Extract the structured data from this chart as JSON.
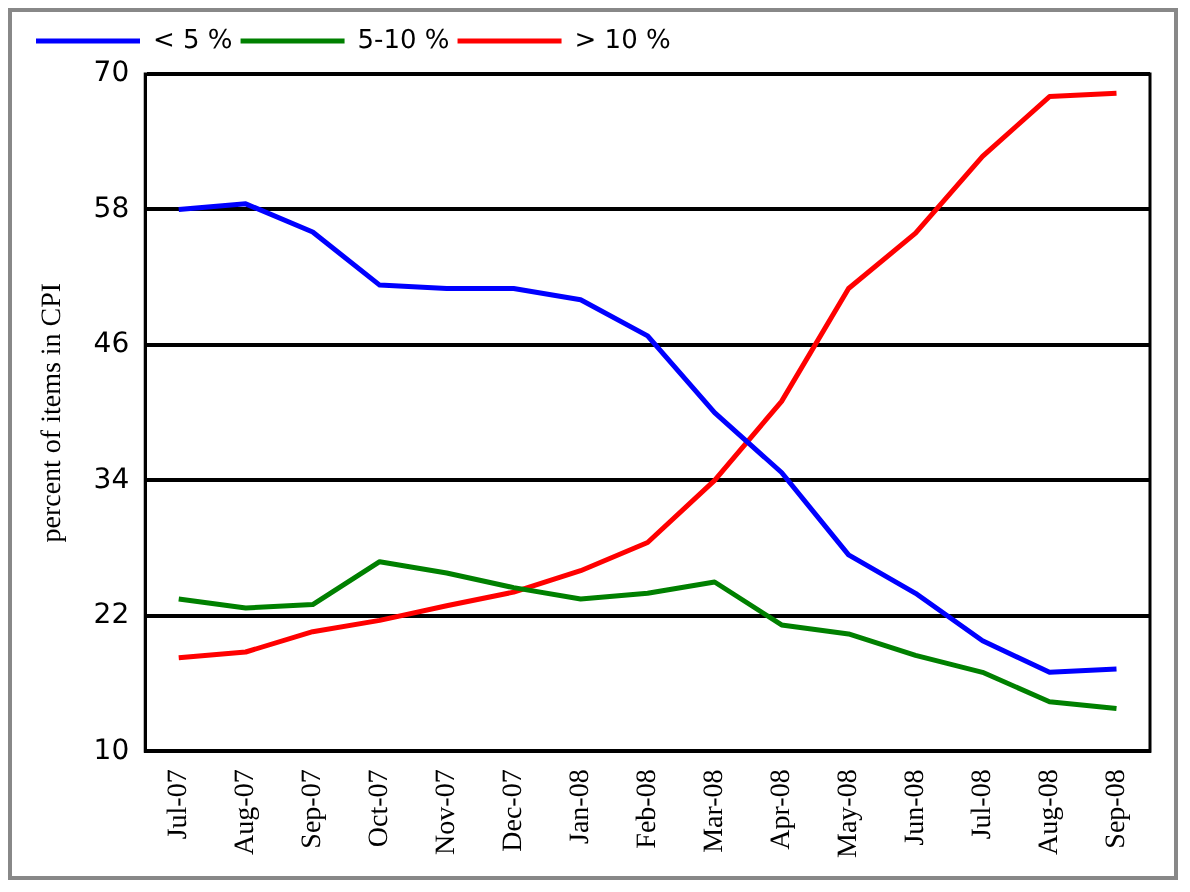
{
  "chart_data": {
    "type": "line",
    "ylabel": "percent of items in CPI",
    "categories": [
      "Jul-07",
      "Aug-07",
      "Sep-07",
      "Oct-07",
      "Nov-07",
      "Dec-07",
      "Jan-08",
      "Feb-08",
      "Mar-08",
      "Apr-08",
      "May-08",
      "Jun-08",
      "Jul-08",
      "Aug-08",
      "Sep-08"
    ],
    "series": [
      {
        "name": "< 5 %",
        "color": "#0000ff",
        "values": [
          58,
          58.5,
          56,
          51.3,
          51,
          51,
          50,
          46.8,
          40,
          34.7,
          27.4,
          24,
          19.8,
          17,
          17.3
        ]
      },
      {
        "name": "5-10 %",
        "color": "#008000",
        "values": [
          23.5,
          22.7,
          23,
          26.8,
          25.8,
          24.5,
          23.5,
          24,
          25,
          21.2,
          20.4,
          18.5,
          17,
          14.4,
          13.8
        ]
      },
      {
        "name": "> 10 %",
        "color": "#ff0000",
        "values": [
          18.3,
          18.8,
          20.6,
          21.6,
          22.9,
          24.1,
          26,
          28.5,
          34,
          41,
          51,
          55.9,
          62.7,
          68,
          68.3
        ]
      }
    ],
    "ylim": [
      10,
      70
    ],
    "yticks": [
      10,
      22,
      34,
      46,
      58,
      70
    ],
    "grid": "y",
    "legend": "top left",
    "marker": "none",
    "line_style": "solid"
  }
}
